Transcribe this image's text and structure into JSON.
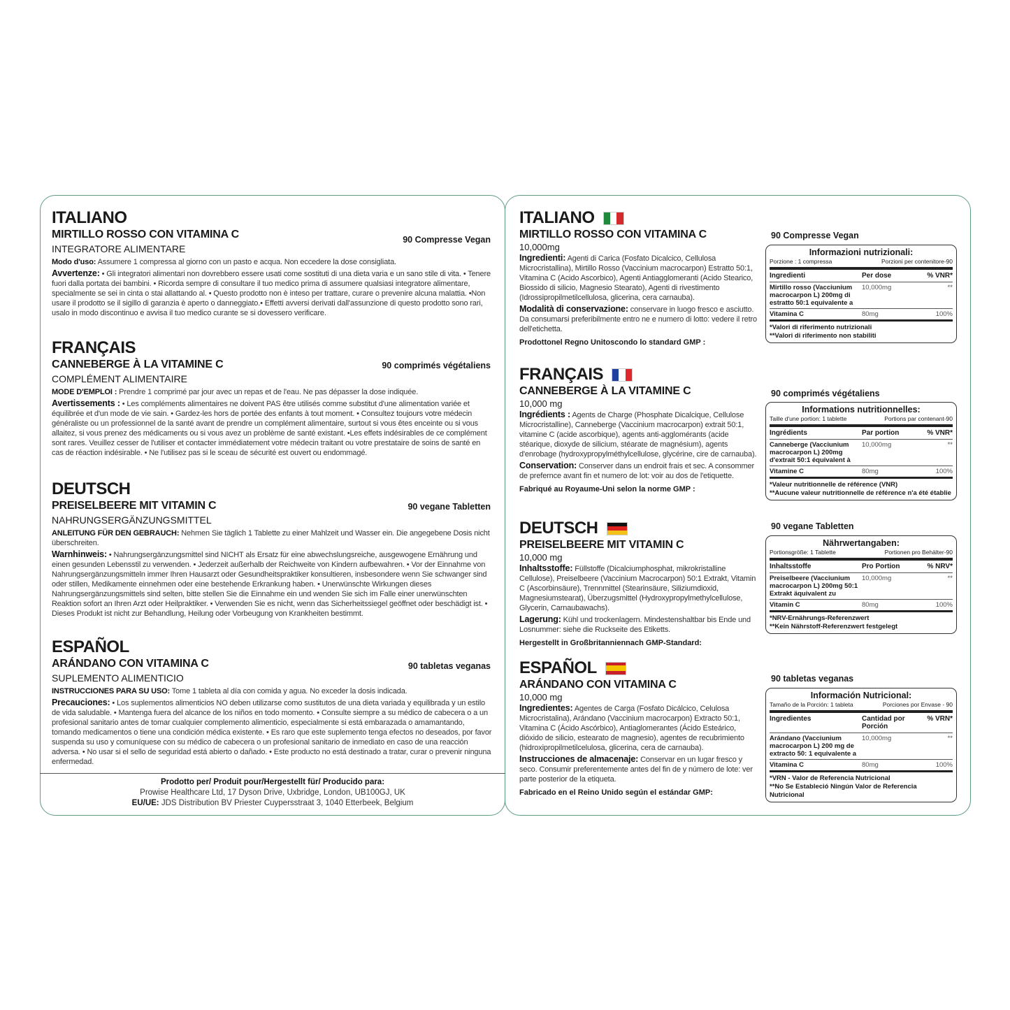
{
  "colors": {
    "panel_border": "#5f9c80"
  },
  "left": {
    "sections": [
      {
        "lang": "ITALIANO",
        "product": "MIRTILLO ROSSO CON VITAMINA C",
        "count": "90 Compresse Vegan",
        "type": "INTEGRATORE ALIMENTARE",
        "usage_label": "Modo d'uso:",
        "usage_text": " Assumere 1 compressa al giorno con un pasto e acqua. Non eccedere la dose consigliata.",
        "warn_label": "Avvertenze:",
        "warn_text": " • Gli integratori alimentari non dovrebbero essere usati come sostituti di una dieta varia e un sano stile di vita. • Tenere fuori dalla portata dei bambini. • Ricorda sempre di consultare il tuo medico prima di assumere qualsiasi integratore alimentare, specialmente se sei in cinta o stai allattando al. • Questo prodotto non è inteso per trattare, curare o prevenire alcuna malattia. •Non usare il prodotto se il sigillo di garanzia è aperto o danneggiato.•  Effetti avversi derivati dall'assunzione di questo prodotto sono rari, usalo in modo discontinuo e avvisa il tuo medico curante se si dovessero verificare."
      },
      {
        "lang": "FRANÇAIS",
        "product": "CANNEBERGE À LA VITAMINE C",
        "count": "90 comprimés végétaliens",
        "type": "COMPLÉMENT ALIMENTAIRE",
        "usage_label": "MODE D'EMPLOI :",
        "usage_text": " Prendre 1 comprimé par jour avec un repas et de l'eau. Ne pas dépasser la dose indiquée.",
        "warn_label": "Avertissements :",
        "warn_text": " • Les compléments alimentaires ne doivent PAS être utilisés comme substitut d'une alimentation variée et équilibrée et d'un mode de vie sain. • Gardez-les hors de portée des enfants à tout moment.  • Consultez toujours votre médecin généraliste ou un professionnel de la santé avant de prendre un complément alimentaire, surtout si vous êtes enceinte ou si vous allaitez, si vous prenez des médicaments ou si vous avez un problème de santé existant. •Les effets indésirables de ce complément sont rares. Veuillez cesser de l'utiliser et contacter immédiatement votre médecin traitant ou votre prestataire de soins de santé en cas de réaction indésirable. • Ne l'utilisez pas si le sceau de sécurité est ouvert ou endommagé."
      },
      {
        "lang": "DEUTSCH",
        "product": "PREISELBEERE MIT VITAMIN C",
        "count": "90 vegane Tabletten",
        "type": "NAHRUNGSERGÄNZUNGSMITTEL",
        "usage_label": "ANLEITUNG FÜR DEN GEBRAUCH:",
        "usage_text": " Nehmen Sie täglich 1 Tablette zu einer Mahlzeit und Wasser ein. Die angegebene Dosis nicht überschreiten.",
        "warn_label": "Warnhinweis:",
        "warn_text": " • Nahrungsergänzungsmittel sind NICHT als Ersatz für eine abwechslungsreiche, ausgewogene Ernährung und einen gesunden Lebensstil zu verwenden.  • Jederzeit außerhalb der Reichweite von Kindern aufbewahren. • Vor der Einnahme von Nahrungsergänzungsmitteln immer Ihren Hausarzt oder Gesundheitspraktiker konsultieren, insbesondere wenn Sie schwanger sind oder stillen, Medikamente einnehmen oder eine bestehende Erkrankung haben. •  Unerwünschte Wirkungen dieses Nahrungsergänzungsmittels sind selten, bitte stellen Sie die Einnahme ein und wenden Sie sich im Falle einer unerwünschten Reaktion sofort an Ihren Arzt oder Heilpraktiker. • Verwenden Sie es nicht, wenn das Sicherheitssiegel geöffnet oder beschädigt ist. •  Dieses Produkt ist nicht zur Behandlung, Heilung oder Vorbeugung von Krankheiten bestimmt."
      },
      {
        "lang": "ESPAÑOL",
        "product": "ARÁNDANO CON VITAMINA C",
        "count": "90 tabletas veganas",
        "type": "SUPLEMENTO ALIMENTICIO",
        "usage_label": "INSTRUCCIONES PARA SU USO:",
        "usage_text": " Tome 1 tableta al día con comida y agua. No exceder la dosis indicada.",
        "warn_label": "Precauciones:",
        "warn_text": " • Los suplementos alimenticios NO deben utilizarse como sustitutos de una dieta variada y equilibrada y un estilo de vida saludable. • Mantenga fuera del alcance de los niños en todo momento. • Consulte siempre a su médico de cabecera o a un profesional sanitario antes de tomar cualquier complemento alimenticio, especialmente si está embarazada o amamantando, tomando medicamentos o tiene una condición médica existente. • Es raro que este suplemento tenga efectos no deseados, por favor suspenda su uso y comuníquese con su médico de cabecera o un profesional sanitario de inmediato en caso de una reacción adversa. • No usar si el sello de seguridad está abierto o dañado. • Este producto no está destinado a tratar, curar o prevenir ninguna enfermedad."
      }
    ],
    "footer": {
      "title": "Prodotto per/ Produit pour/Hergestellt für/ Producido para:",
      "address": "Prowise Healthcare Ltd, 17 Dyson Drive, Uxbridge, London, UB100GJ, UK",
      "eu_label": "EU/UE:",
      "eu_text": " JDS Distribution BV Priester Cuypersstraat 3, 1040 Etterbeek, Belgium"
    }
  },
  "right": {
    "sections": [
      {
        "lang": "ITALIANO",
        "flag": "italy-flag",
        "flag_colors": [
          "#1f8a3c",
          "#ffffff",
          "#d42a2e"
        ],
        "product": "MIRTILLO ROSSO CON VITAMINA C",
        "amount": "10,000mg",
        "ing_label": "Ingredienti:",
        "ing_text": " Agenti di Carica (Fosfato Dicalcico, Cellulosa Microcristallina), Mirtillo Rosso (Vaccinium macrocarpon) Estratto 50:1, Vitamina C (Acido Ascorbico), Agenti Antiagglomeranti (Acido Stearico, Biossido di silicio, Magnesio Stearato), Agenti di rivestimento (Idrossipropilmetilcellulosa, glicerina, cera carnauba).",
        "sto_label": "Modalità di conservazione:",
        "sto_text": " conservare in luogo fresco e asciutto. Da consumarsi preferibilmente entro ne e numero di lotto: vedere il retro dell'etichetta.",
        "gmp": "Prodottonel Regno Unitoscondo lo standard GMP :",
        "count": "90 Compresse Vegan",
        "panel": {
          "title": "Informazioni nutrizionali:",
          "serving": "Porzione : 1 compressa",
          "servings": "Porzioni per contenitore-90",
          "headers": [
            "Ingredienti",
            "Per dose",
            "% VNR*"
          ],
          "rows": [
            {
              "name": "Mirtillo rosso (Vacciunium macrocarpon L) 200mg di estratto 50:1 equivalente a",
              "amount": "10,000mg",
              "pct": "**"
            },
            {
              "name": "Vitamina C",
              "amount": "80mg",
              "pct": "100%"
            }
          ],
          "notes": [
            "*Valori di riferimento nutrizionali",
            "**Valori di riferimento non stabiliti"
          ]
        }
      },
      {
        "lang": "FRANÇAIS",
        "flag": "france-flag",
        "flag_colors": [
          "#1f3fa0",
          "#ffffff",
          "#e0262e"
        ],
        "product": "CANNEBERGE À LA VITAMINE C",
        "amount": "10,000 mg",
        "ing_label": "Ingrédients :",
        "ing_text": " Agents de Charge (Phosphate Dicalcique, Cellulose Microcristalline), Canneberge (Vaccinium macrocarpon) extrait 50:1, vitamine C (acide ascorbique), agents anti-agglomérants (acide stéarique, dioxyde de silicium, stéarate de magnésium), agents d'enrobage (hydroxypropylméthylcellulose, glycérine, cire de carnauba).",
        "sto_label": "Conservation:",
        "sto_text": " Conserver dans un endroit frais et sec. A consommer de prefernce avant fin et numero de lot: voir au dos de l'etiquette.",
        "gmp": "Fabriqué au Royaume-Uni selon la norme GMP :",
        "count": "90 comprimés végétaliens",
        "panel": {
          "title": "Informations nutritionnelles:",
          "serving": "Taille d'une portion: 1 tablette",
          "servings": "Portions par contenant-90",
          "headers": [
            "Ingrédients",
            "Par portion",
            "% VNR*"
          ],
          "rows": [
            {
              "name": "Canneberge (Vacciunium macrocarpon L) 200mg d'extrait 50:1 équivalent à",
              "amount": "10,000mg",
              "pct": "**"
            },
            {
              "name": "Vitamine C",
              "amount": "80mg",
              "pct": "100%"
            }
          ],
          "notes": [
            "*Valeur nutritionnelle de référence (VNR)",
            "**Aucune valeur nutritionnelle de référence n'a été établie"
          ]
        }
      },
      {
        "lang": "DEUTSCH",
        "flag": "germany-flag",
        "flag_colors": [
          "#111111",
          "#dd2020",
          "#f2c21b"
        ],
        "product": "PREISELBEERE MIT VITAMIN C",
        "amount": "10,000 mg",
        "ing_label": "Inhaltsstoffe:",
        "ing_text": " Füllstoffe (Dicalciumphosphat, mikrokristalline Cellulose), Preiselbeere (Vaccinium Macrocarpon) 50:1 Extrakt, Vitamin C (Ascorbinsäure), Trennmittel (Stearinsäure, Siliziumdioxid, Magnesiumstearat), Überzugsmittel (Hydroxypropylmethylcellulose, Glycerin, Carnaubawachs).",
        "sto_label": "Lagerung:",
        "sto_text": "  Kühl und trockenlagern. Mindestenshaltbar bis Ende und Losnummer: siehe die Ruckseite des Etiketts.",
        "gmp": "Hergestellt in Großbritanniennach GMP-Standard:",
        "count": "90 vegane Tabletten",
        "panel": {
          "title": "Nährwertangaben:",
          "serving": "Portionsgröße: 1 Tablette",
          "servings": "Portionen pro Behälter-90",
          "headers": [
            "Inhaltsstoffe",
            "Pro Portion",
            "% NRV*"
          ],
          "rows": [
            {
              "name": "Preiselbeere (Vacciunium macrocarpon L) 200mg 50:1 Extrakt äquivalent zu",
              "amount": "10,000mg",
              "pct": "**"
            },
            {
              "name": "Vitamin C",
              "amount": "80mg",
              "pct": "100%"
            }
          ],
          "notes": [
            "*NRV-Ernährungs-Referenzwert",
            "**Kein Nährstoff-Referenzwert festgelegt"
          ]
        }
      },
      {
        "lang": "ESPAÑOL",
        "flag": "spain-flag",
        "flag_colors": [
          "#c8202a",
          "#f5c400",
          "#c8202a"
        ],
        "product": "ARÁNDANO CON VITAMINA C",
        "amount": "10,000 mg",
        "ing_label": "Ingredientes:",
        "ing_text": " Agentes de Carga (Fosfato Dicálcico, Celulosa Microcristalina), Arándano (Vaccinium macrocarpon) Extracto 50:1, Vitamina C (Ácido Ascórbico), Antiaglomerantes (Ácido Esteárico, dióxido de silicio, estearato de magnesio), agentes de recubrimiento (hidroxipropilmetilcelulosa, glicerina, cera de carnauba).",
        "sto_label": "Instrucciones de almacenaje:",
        "sto_text": " Conservar en un lugar fresco y seco. Consumir preferentemente antes del fin de y número de lote: ver parte posterior de la etiqueta.",
        "gmp": "Fabricado en el Reino Unido según el estándar GMP:",
        "count": "90 tabletas veganas",
        "panel": {
          "title": "Información Nutricional:",
          "serving": "Tamaño de la Porción: 1 tableta",
          "servings": "Porciones por Envase - 90",
          "headers": [
            "Ingredientes",
            "Cantidad  por Porción",
            "% VRN*"
          ],
          "rows": [
            {
              "name": "Arándano (Vacciunium macrocarpon L) 200 mg de extracto 50: 1 equivalente a",
              "amount": "10,000mg",
              "pct": "**"
            },
            {
              "name": "Vitamina C",
              "amount": "80mg",
              "pct": "100%"
            }
          ],
          "notes": [
            "*VRN - Valor de Referencia Nutricional",
            "**No Se Estableció Ningún Valor de Referencia Nutricional"
          ]
        }
      }
    ]
  }
}
